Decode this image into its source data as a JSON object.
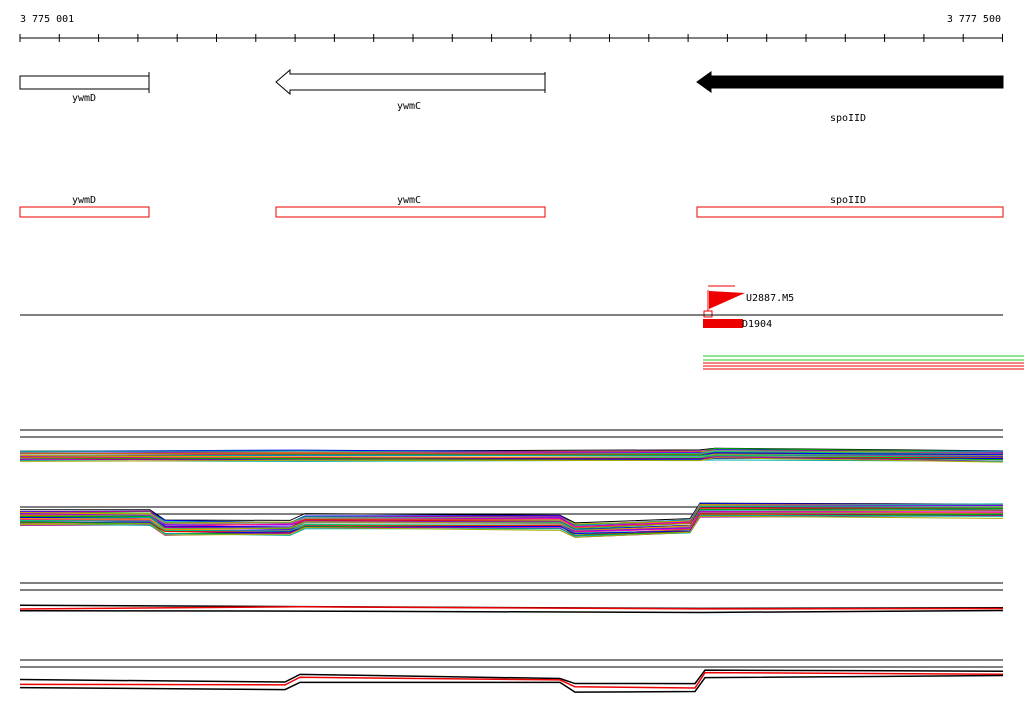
{
  "ruler": {
    "start": "3 775 001",
    "end": "3 777 500"
  },
  "gene_track": [
    "ywmD",
    "ywmC",
    "spoIID"
  ],
  "annotation_track": [
    "ywmD",
    "ywmC",
    "spoIID"
  ],
  "features": {
    "promoter": "U2887.M5",
    "site": "D1904"
  }
}
